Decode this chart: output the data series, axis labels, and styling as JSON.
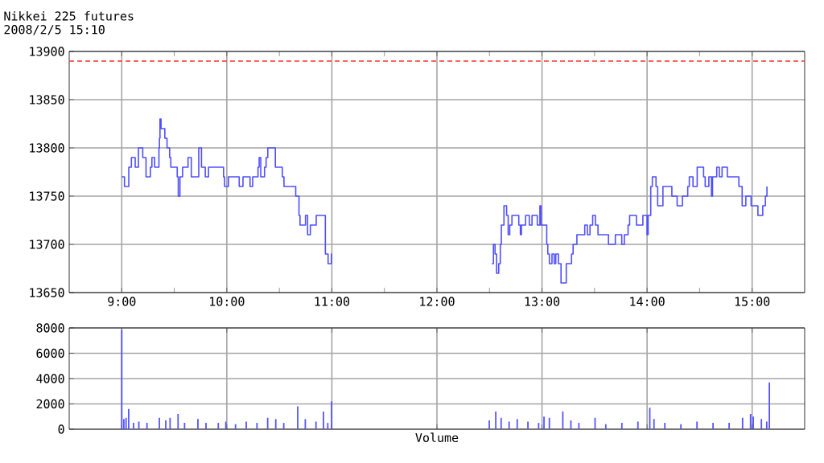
{
  "chart_data": [
    {
      "type": "step",
      "title": "Nikkei 225 futures",
      "subtitle": "2008/2/5 15:10",
      "grid": true,
      "xlim": [
        8.5,
        15.5
      ],
      "ylim": [
        13650,
        13900
      ],
      "xticks": [
        {
          "value": 9,
          "label": "9:00"
        },
        {
          "value": 10,
          "label": "10:00"
        },
        {
          "value": 11,
          "label": "11:00"
        },
        {
          "value": 12,
          "label": "12:00"
        },
        {
          "value": 13,
          "label": "13:00"
        },
        {
          "value": 14,
          "label": "14:00"
        },
        {
          "value": 15,
          "label": "15:00"
        },
        {
          "value": 9.5,
          "label": null
        },
        {
          "value": 10.5,
          "label": null
        },
        {
          "value": 11.5,
          "label": null
        },
        {
          "value": 12.5,
          "label": null
        },
        {
          "value": 13.5,
          "label": null
        },
        {
          "value": 14.5,
          "label": null
        }
      ],
      "yticks": [
        13650,
        13700,
        13750,
        13800,
        13850,
        13900
      ],
      "ref_lines": [
        {
          "axis": "y",
          "value": 13890,
          "color": "#ff3333",
          "line_style": "dashed"
        }
      ],
      "x": [
        9.0,
        9.026,
        9.067,
        9.092,
        9.128,
        9.159,
        9.2,
        9.231,
        9.272,
        9.287,
        9.313,
        9.354,
        9.359,
        9.364,
        9.374,
        9.41,
        9.431,
        9.456,
        9.467,
        9.528,
        9.538,
        9.554,
        9.579,
        9.631,
        9.662,
        9.733,
        9.759,
        9.795,
        9.826,
        9.969,
        9.979,
        10.015,
        10.118,
        10.154,
        10.221,
        10.246,
        10.297,
        10.308,
        10.323,
        10.359,
        10.374,
        10.39,
        10.462,
        10.528,
        10.544,
        10.656,
        10.687,
        10.697,
        10.749,
        10.769,
        10.795,
        10.851,
        10.938,
        10.964,
        10.995,
        11.0,
        11.5,
        12.523,
        12.538,
        12.553,
        12.568,
        12.588,
        12.603,
        12.613,
        12.638,
        12.663,
        12.678,
        12.693,
        12.714,
        12.779,
        12.794,
        12.804,
        12.844,
        12.879,
        12.905,
        12.955,
        12.98,
        12.99,
        13.045,
        13.055,
        13.07,
        13.095,
        13.116,
        13.131,
        13.156,
        13.181,
        13.231,
        13.281,
        13.296,
        13.332,
        13.367,
        13.407,
        13.432,
        13.457,
        13.482,
        13.508,
        13.533,
        13.633,
        13.698,
        13.759,
        13.784,
        13.819,
        13.834,
        13.899,
        13.96,
        14.0,
        14.01,
        14.035,
        14.05,
        14.085,
        14.101,
        14.151,
        14.236,
        14.286,
        14.337,
        14.387,
        14.402,
        14.437,
        14.477,
        14.538,
        14.553,
        14.588,
        14.613,
        14.623,
        14.663,
        14.688,
        14.714,
        14.764,
        14.874,
        14.905,
        14.94,
        14.99,
        15.055,
        15.101,
        15.126,
        15.141
      ],
      "series": [
        {
          "color": "#4f4fff",
          "values": [
            13770,
            13760,
            13780,
            13790,
            13780,
            13800,
            13790,
            13770,
            13780,
            13790,
            13780,
            13800,
            13810,
            13830,
            13820,
            13810,
            13800,
            13790,
            13780,
            13770,
            13750,
            13770,
            13780,
            13790,
            13770,
            13800,
            13780,
            13770,
            13780,
            13770,
            13760,
            13770,
            13760,
            13770,
            13760,
            13770,
            13780,
            13790,
            13770,
            13780,
            13790,
            13800,
            13780,
            13770,
            13760,
            13750,
            13730,
            13720,
            13730,
            13710,
            13720,
            13730,
            13690,
            13680,
            13690,
            13690,
            null,
            13680,
            13700,
            13690,
            13670,
            13680,
            13700,
            13720,
            13740,
            13730,
            13710,
            13720,
            13730,
            13720,
            13710,
            13720,
            13730,
            13720,
            13730,
            13720,
            13740,
            13720,
            13700,
            13690,
            13680,
            13690,
            13680,
            13690,
            13680,
            13660,
            13680,
            13690,
            13700,
            13710,
            13710,
            13720,
            13710,
            13720,
            13730,
            13720,
            13710,
            13700,
            13710,
            13700,
            13710,
            13720,
            13730,
            13720,
            13730,
            13710,
            13730,
            13760,
            13770,
            13760,
            13740,
            13760,
            13750,
            13740,
            13750,
            13760,
            13770,
            13760,
            13780,
            13770,
            13760,
            13770,
            13750,
            13770,
            13780,
            13770,
            13780,
            13770,
            13760,
            13740,
            13750,
            13740,
            13730,
            13740,
            13750,
            13760
          ]
        }
      ]
    },
    {
      "type": "bar",
      "xlabel": "Volume",
      "grid": true,
      "tick_labels": "y",
      "xlim": [
        8.5,
        15.5
      ],
      "ylim": [
        0,
        8000
      ],
      "xticks": [
        9,
        10,
        11,
        12,
        13,
        14,
        15
      ],
      "yticks": [
        0,
        2000,
        4000,
        6000,
        8000
      ],
      "x": [
        9.0,
        9.02,
        9.041,
        9.066,
        9.112,
        9.163,
        9.24,
        9.358,
        9.419,
        9.46,
        9.536,
        9.598,
        9.725,
        9.802,
        9.919,
        9.991,
        10.083,
        10.185,
        10.287,
        10.389,
        10.466,
        10.542,
        10.675,
        10.747,
        10.849,
        10.92,
        10.961,
        10.997,
        12.498,
        12.56,
        12.611,
        12.687,
        12.764,
        12.866,
        12.968,
        13.019,
        13.07,
        13.198,
        13.275,
        13.351,
        13.505,
        13.607,
        13.76,
        13.913,
        14.026,
        14.066,
        14.169,
        14.322,
        14.475,
        14.628,
        14.781,
        14.909,
        14.985,
        15.011,
        15.088,
        15.139,
        15.164
      ],
      "series": [
        {
          "color": "#5555ff",
          "values": [
            7800,
            800,
            900,
            1600,
            500,
            600,
            500,
            900,
            700,
            900,
            1200,
            500,
            800,
            500,
            500,
            600,
            400,
            600,
            500,
            900,
            800,
            500,
            1800,
            800,
            600,
            1400,
            500,
            2200,
            700,
            1400,
            900,
            600,
            800,
            600,
            500,
            1000,
            900,
            1400,
            700,
            500,
            900,
            400,
            500,
            600,
            1700,
            800,
            500,
            400,
            600,
            500,
            500,
            900,
            1200,
            1000,
            800,
            600,
            3700
          ]
        }
      ]
    }
  ]
}
